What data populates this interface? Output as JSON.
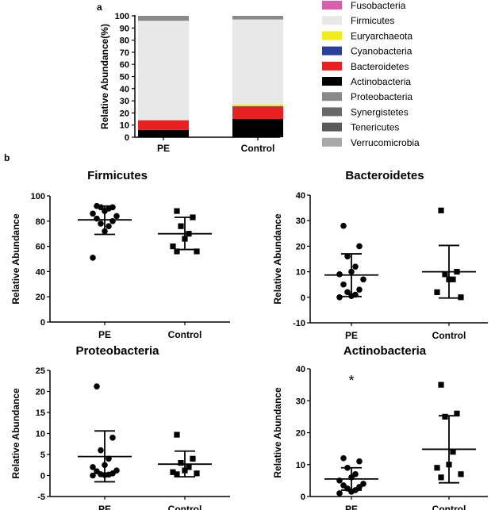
{
  "panel_labels": {
    "a": "a",
    "b": "b"
  },
  "chart_data": [
    {
      "type": "bar",
      "stacked": true,
      "panel": "a",
      "title": "",
      "xlabel": "",
      "ylabel": "Relative Abundance(%)",
      "ylim": [
        0,
        100
      ],
      "yticks": [
        "0",
        "10",
        "20",
        "30",
        "40",
        "50",
        "60",
        "70",
        "80",
        "90",
        "100"
      ],
      "categories": [
        "PE",
        "Control"
      ],
      "series": [
        {
          "name": "Actinobacteria",
          "color": "#000000",
          "values": [
            6,
            15
          ]
        },
        {
          "name": "Bacteroidetes",
          "color": "#e8201f",
          "values": [
            8,
            10
          ]
        },
        {
          "name": "Cyanobacteria",
          "color": "#2a3f9a",
          "values": [
            0,
            0.5
          ]
        },
        {
          "name": "Euryarchaeota",
          "color": "#f2ea1c",
          "values": [
            0,
            1.5
          ]
        },
        {
          "name": "Firmicutes",
          "color": "#e8e8e8",
          "values": [
            82,
            70
          ]
        },
        {
          "name": "Proteobacteria",
          "color": "#8a8a8a",
          "values": [
            4,
            3
          ]
        }
      ],
      "legend": [
        {
          "name": "Fusobacteria",
          "color": "#d65fae"
        },
        {
          "name": "Firmicutes",
          "color": "#e8e8e8"
        },
        {
          "name": "Euryarchaeota",
          "color": "#f2ea1c"
        },
        {
          "name": "Cyanobacteria",
          "color": "#2a3f9a"
        },
        {
          "name": "Bacteroidetes",
          "color": "#e8201f"
        },
        {
          "name": "Actinobacteria",
          "color": "#000000"
        },
        {
          "name": "Proteobacteria",
          "color": "#8a8a8a"
        },
        {
          "name": "Synergistetes",
          "color": "#686868"
        },
        {
          "name": "Tenericutes",
          "color": "#5a5a5a"
        },
        {
          "name": "Verrucomicrobia",
          "color": "#a8a8a8"
        }
      ]
    },
    {
      "type": "scatter",
      "panel": "b1",
      "title": "Firmicutes",
      "ylabel": "Relative Abundance",
      "categories": [
        "PE",
        "Control"
      ],
      "ylim": [
        0,
        100
      ],
      "yticks": [
        "0",
        "20",
        "40",
        "60",
        "80",
        "100"
      ],
      "groups": [
        {
          "name": "PE",
          "marker": "circle",
          "values": [
            92,
            91,
            91,
            90,
            88,
            86,
            84,
            82,
            80,
            78,
            76,
            72,
            51
          ],
          "mean": 81,
          "sd_low": 69.5,
          "sd_high": 92
        },
        {
          "name": "Control",
          "marker": "square",
          "values": [
            88,
            83,
            76,
            70,
            66,
            60,
            56,
            56
          ],
          "mean": 70,
          "sd_low": 57.5,
          "sd_high": 83
        }
      ]
    },
    {
      "type": "scatter",
      "panel": "b2",
      "title": "Bacteroidetes",
      "ylabel": "Relative Abundance",
      "categories": [
        "PE",
        "Control"
      ],
      "ylim": [
        -10,
        40
      ],
      "yticks": [
        "-10",
        "0",
        "10",
        "20",
        "30",
        "40"
      ],
      "groups": [
        {
          "name": "PE",
          "marker": "circle",
          "values": [
            28,
            20,
            16,
            12,
            10,
            9,
            7,
            5,
            3,
            2,
            1,
            0.5,
            0
          ],
          "mean": 8.7,
          "sd_low": 0.3,
          "sd_high": 17
        },
        {
          "name": "Control",
          "marker": "square",
          "values": [
            34,
            10,
            9,
            7,
            7,
            2,
            0
          ],
          "mean": 10,
          "sd_low": -0.3,
          "sd_high": 20.3
        }
      ]
    },
    {
      "type": "scatter",
      "panel": "b3",
      "title": "Proteobacteria",
      "ylabel": "Relative Abundance",
      "categories": [
        "PE",
        "Control"
      ],
      "ylim": [
        -5,
        25
      ],
      "yticks": [
        "-5",
        "0",
        "5",
        "10",
        "15",
        "20",
        "25"
      ],
      "groups": [
        {
          "name": "PE",
          "marker": "circle",
          "values": [
            21.2,
            9,
            6,
            4,
            2.5,
            2,
            1.2,
            1,
            0.5,
            0.3,
            0.2,
            0.1,
            0
          ],
          "mean": 4.5,
          "sd_low": -1.5,
          "sd_high": 10.6
        },
        {
          "name": "Control",
          "marker": "square",
          "values": [
            9.7,
            4,
            3,
            2,
            1.2,
            0.8,
            0.5,
            0.3
          ],
          "mean": 2.7,
          "sd_low": -0.3,
          "sd_high": 5.8
        }
      ]
    },
    {
      "type": "scatter",
      "panel": "b4",
      "title": "Actinobacteria",
      "ylabel": "Relative Abundance",
      "categories": [
        "PE",
        "Control"
      ],
      "ylim": [
        0,
        40
      ],
      "yticks": [
        "0",
        "10",
        "20",
        "30",
        "40"
      ],
      "annotation": "*",
      "groups": [
        {
          "name": "PE",
          "marker": "circle",
          "values": [
            12,
            11,
            9,
            7,
            6,
            5,
            4,
            3.5,
            3,
            2.5,
            2,
            1.5,
            1
          ],
          "mean": 5.5,
          "sd_low": 2,
          "sd_high": 9
        },
        {
          "name": "Control",
          "marker": "square",
          "values": [
            35,
            26,
            25,
            14,
            10,
            9,
            7,
            6
          ],
          "mean": 14.8,
          "sd_low": 4.3,
          "sd_high": 25.3
        }
      ]
    }
  ]
}
